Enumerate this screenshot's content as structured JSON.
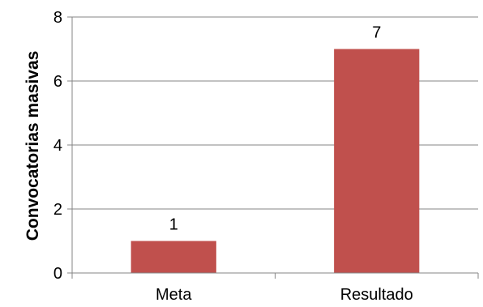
{
  "chart_data": {
    "type": "bar",
    "title": "",
    "xlabel": "",
    "ylabel": "Convocatorias masivas",
    "categories": [
      "Meta",
      "Resultado"
    ],
    "values": [
      1,
      7
    ],
    "data_labels": [
      "1",
      "7"
    ],
    "ylim": [
      0,
      8
    ],
    "yticks": [
      0,
      2,
      4,
      6,
      8
    ],
    "ytick_labels": [
      "0",
      "2",
      "4",
      "6",
      "8"
    ],
    "grid": "horizontal",
    "legend": "none",
    "colors": {
      "bar": "#c0504d",
      "grid": "#868686",
      "axis": "#868686"
    }
  }
}
